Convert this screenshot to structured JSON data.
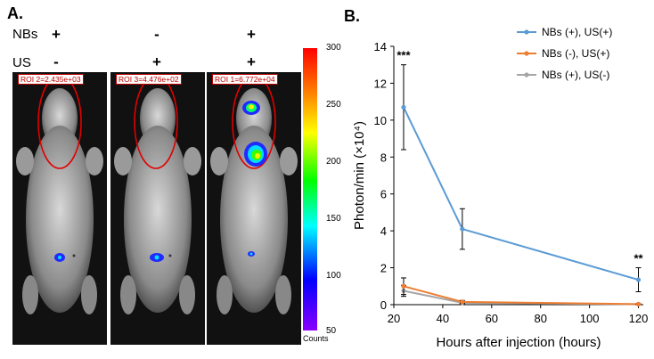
{
  "panel_a": {
    "letter": "A.",
    "rows": [
      {
        "label": "NBs",
        "signs": [
          "+",
          "-",
          "+"
        ]
      },
      {
        "label": "US",
        "signs": [
          "-",
          "+",
          "+"
        ]
      }
    ],
    "roi_labels": [
      "ROI 2=2.435e+03",
      "ROI 3=4.476e+02",
      "ROI 1=6.772e+04"
    ],
    "colorbar": {
      "ticks": [
        "300",
        "250",
        "200",
        "150",
        "100",
        "50"
      ],
      "unit": "Counts"
    }
  },
  "panel_b": {
    "letter": "B."
  },
  "chart_data": {
    "type": "line",
    "xlabel": "Hours after injection (hours)",
    "ylabel": "Photon/min (×10⁴)",
    "xlim": [
      20,
      122
    ],
    "ylim": [
      0,
      14
    ],
    "xticks": [
      "20",
      "40",
      "60",
      "80",
      "100",
      "120"
    ],
    "yticks": [
      "0",
      "2",
      "4",
      "6",
      "8",
      "10",
      "12",
      "14"
    ],
    "legend_position": "top-right",
    "grid": false,
    "series": [
      {
        "name": "NBs (+), US(+)",
        "color": "#5b9bd5",
        "x": [
          24,
          48,
          120
        ],
        "y": [
          10.7,
          4.1,
          1.35
        ],
        "err": [
          2.3,
          1.1,
          0.65
        ]
      },
      {
        "name": "NBs (-), US(+)",
        "color": "#ed7d31",
        "x": [
          24,
          48,
          120
        ],
        "y": [
          1.0,
          0.15,
          0.03
        ],
        "err": [
          0.45,
          0.08,
          0.02
        ]
      },
      {
        "name": "NBs (+), US(-)",
        "color": "#a5a5a5",
        "x": [
          24,
          48,
          120
        ],
        "y": [
          0.75,
          0.1,
          0.02
        ],
        "err": [
          0.3,
          0.06,
          0.02
        ]
      }
    ],
    "annotations": [
      {
        "text": "***",
        "x": 24,
        "y": 13.3
      },
      {
        "text": "**",
        "x": 120,
        "y": 2.3
      }
    ]
  }
}
